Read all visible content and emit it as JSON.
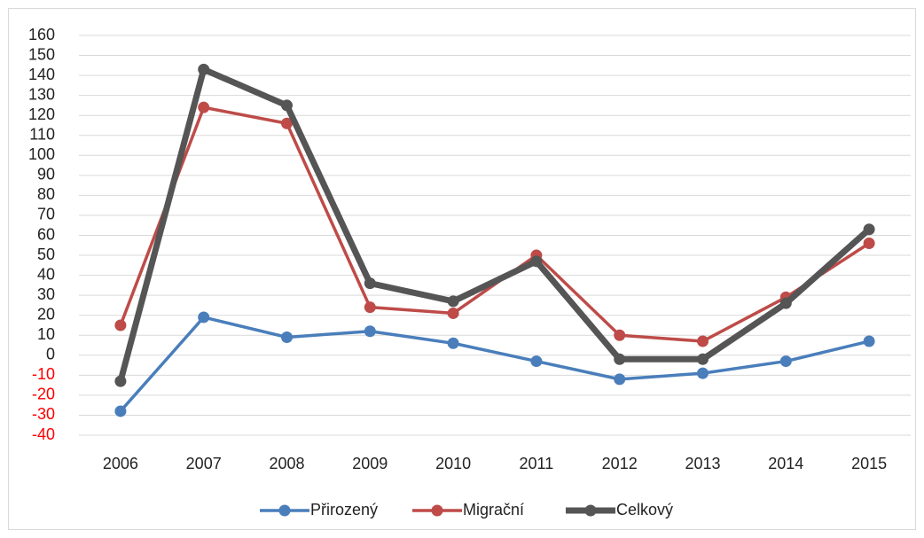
{
  "chart_data": {
    "type": "line",
    "categories": [
      "2006",
      "2007",
      "2008",
      "2009",
      "2010",
      "2011",
      "2012",
      "2013",
      "2014",
      "2015"
    ],
    "series": [
      {
        "name": "Přirozený",
        "color": "#4a7ebb",
        "values": [
          -28,
          19,
          9,
          12,
          6,
          -3,
          -12,
          -9,
          -3,
          7
        ]
      },
      {
        "name": "Migrační",
        "color": "#be4b48",
        "values": [
          15,
          124,
          116,
          24,
          21,
          50,
          10,
          7,
          29,
          56
        ]
      },
      {
        "name": "Celkový",
        "color": "#555555",
        "values": [
          -13,
          143,
          125,
          36,
          27,
          47,
          -2,
          -2,
          26,
          63
        ]
      }
    ],
    "ylim": [
      -40,
      160
    ],
    "yticks": [
      -40,
      -30,
      -20,
      -10,
      0,
      10,
      20,
      30,
      40,
      50,
      60,
      70,
      80,
      90,
      100,
      110,
      120,
      130,
      140,
      150,
      160
    ],
    "grid": true,
    "negative_tick_color": "#ff0000",
    "legend": "bottom"
  }
}
